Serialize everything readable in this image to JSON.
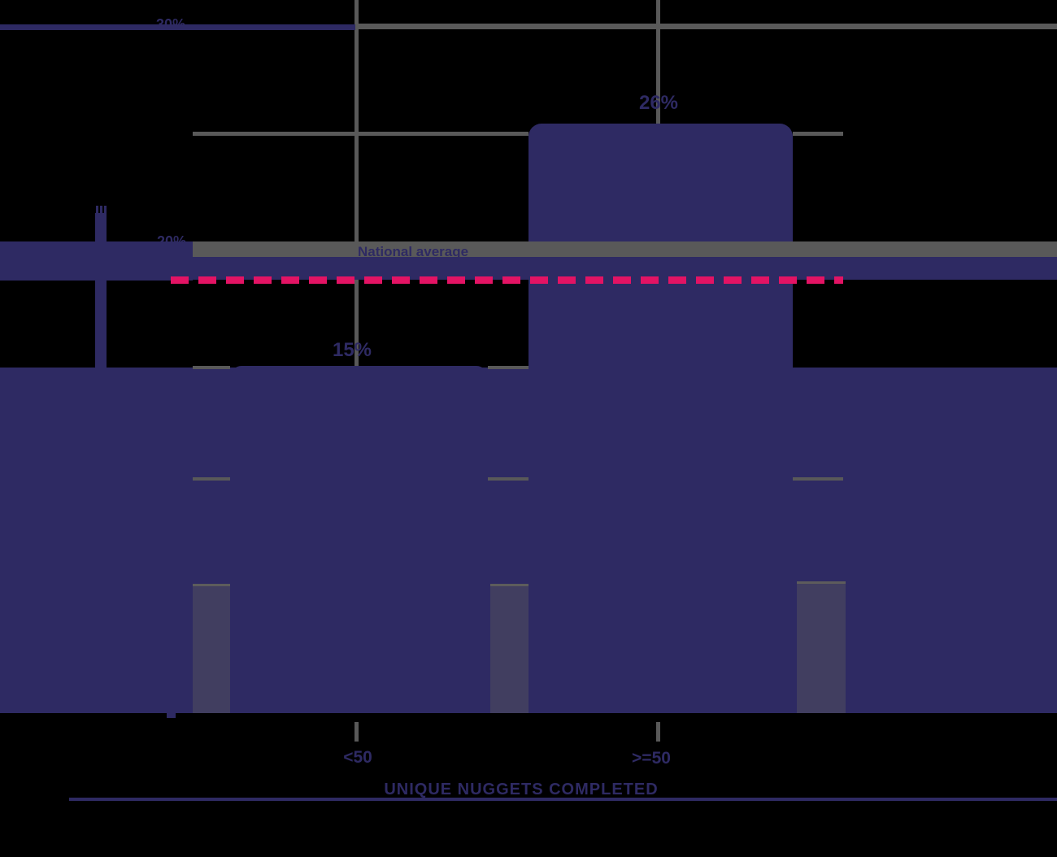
{
  "chart": {
    "x_axis_title": "UNIQUE NUGGETS COMPLETED",
    "y_tick_labels": {
      "p30": "30%",
      "p20": "20%"
    },
    "x_tick_labels": {
      "lt50": "<50",
      "ge50": ">=50"
    },
    "bar_value_labels": {
      "lt50": "15%",
      "ge50": "26%"
    },
    "reference_line_label": "National average"
  },
  "colors": {
    "background": "#000000",
    "bar_navy": "#2E2A63",
    "gridline_gray": "#595959",
    "gap_strip": "#413E60",
    "reference_pink": "#E31364"
  },
  "chart_data": {
    "type": "bar",
    "categories": [
      "<50",
      ">=50"
    ],
    "values": [
      15,
      26
    ],
    "value_labels": [
      "15%",
      "26%"
    ],
    "title": "",
    "xlabel": "UNIQUE NUGGETS COMPLETED",
    "ylabel": "",
    "ylim": [
      0,
      31
    ],
    "y_ticks_visible": [
      "30%",
      "20%"
    ],
    "grid": true,
    "bar_color": "#2E2A63",
    "reference_line": {
      "label": "National average",
      "value": 19,
      "style": "dashed",
      "color": "#E31364"
    }
  }
}
